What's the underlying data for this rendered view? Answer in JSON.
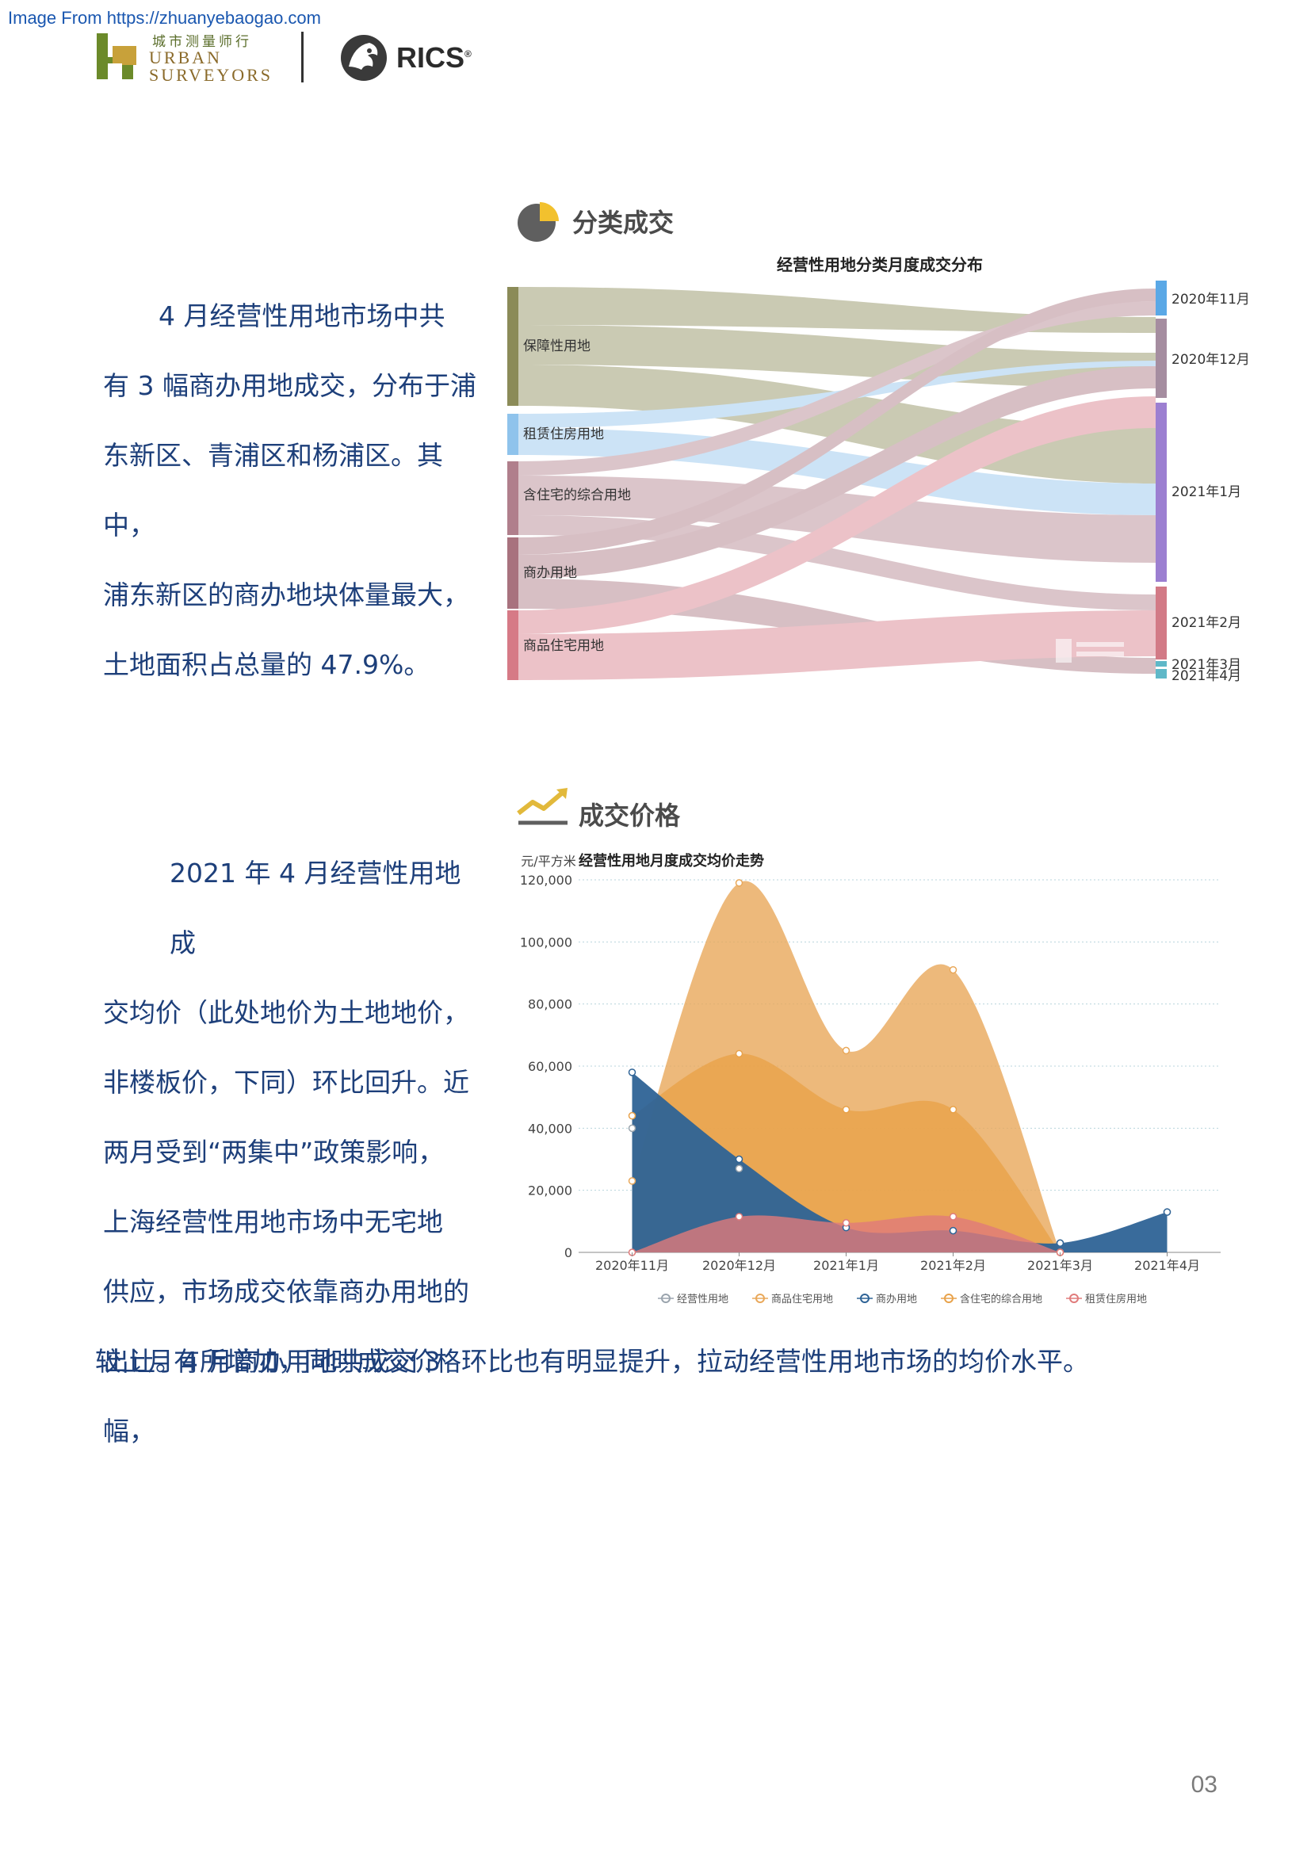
{
  "header": {
    "source_line": "Image From https://zhuanyebaogao.com",
    "logo_cn": "城市测量师行",
    "logo_en_line1": "URBAN",
    "logo_en_line2": "SURVEYORS",
    "partner_logo": "RICS",
    "partner_mark": "®"
  },
  "section1": {
    "title": "分类成交",
    "icon": "pie-chart-icon",
    "paragraph_lines": [
      "4 月经营性用地市场中共",
      "有 3 幅商办用地成交，分布于浦",
      "东新区、青浦区和杨浦区。其中，",
      "浦东新区的商办地块体量最大，",
      "土地面积占总量的 47.9%。"
    ]
  },
  "sankey": {
    "title": "经营性用地分类月度成交分布",
    "sources": [
      "保障性用地",
      "租赁住房用地",
      "含住宅的综合用地",
      "商办用地",
      "商品住宅用地"
    ],
    "targets": [
      "2020年11月",
      "2020年12月",
      "2021年1月",
      "2021年2月",
      "2021年3月",
      "2021年4月"
    ],
    "colors": {
      "保障性用地": "#8b8b58",
      "租赁住房用地": "#8fc3ec",
      "含住宅的综合用地": "#b07f8c",
      "商办用地": "#a8727e",
      "商品住宅用地": "#d67a86"
    },
    "target_colors": [
      "#5aa8e6",
      "#a58da0",
      "#9c7fd1",
      "#d27a86",
      "#5fb8c8",
      "#5fb8c8"
    ]
  },
  "section2": {
    "title": "成交价格",
    "icon": "trend-line-icon",
    "paragraph_lines": [
      "2021 年 4 月经营性用地成",
      "交均价（此处地价为土地地价，",
      "非楼板价，下同）环比回升。近",
      "两月受到“两集中”政策影响，",
      "上海经营性用地市场中无宅地",
      "供应，市场成交依靠商办用地的",
      "出让。4 月商办用地共成交 3 幅，"
    ],
    "paragraph_tail": "较上月有所增加，同时成交价格环比也有明显提升，拉动经营性用地市场的均价水平。"
  },
  "chart_data": {
    "type": "area",
    "title": "经营性用地月度成交均价走势",
    "ylabel": "元/平方米",
    "xlabel": "",
    "categories": [
      "2020年11月",
      "2020年12月",
      "2021年1月",
      "2021年2月",
      "2021年3月",
      "2021年4月"
    ],
    "ylim": [
      0,
      120000
    ],
    "yticks": [
      "0",
      "20,000",
      "40,000",
      "60,000",
      "80,000",
      "100,000",
      "120,000"
    ],
    "grid": true,
    "legend_position": "bottom",
    "series": [
      {
        "name": "经营性用地",
        "color": "#9aa4ad",
        "values": [
          40000,
          27000,
          8000,
          7000,
          3000,
          13000
        ]
      },
      {
        "name": "商品住宅用地",
        "color": "#e9a85a",
        "values": [
          23000,
          119000,
          65000,
          91000,
          0,
          null
        ]
      },
      {
        "name": "商办用地",
        "color": "#2e6396",
        "values": [
          58000,
          30000,
          8000,
          7000,
          3000,
          13000
        ]
      },
      {
        "name": "含住宅的综合用地",
        "color": "#e8a24a",
        "values": [
          44000,
          64000,
          46000,
          46000,
          0,
          null
        ]
      },
      {
        "name": "租赁住房用地",
        "color": "#e07b7b",
        "values": [
          0,
          11500,
          9500,
          11500,
          0,
          null
        ]
      }
    ]
  },
  "footer": {
    "page_number": "03"
  }
}
